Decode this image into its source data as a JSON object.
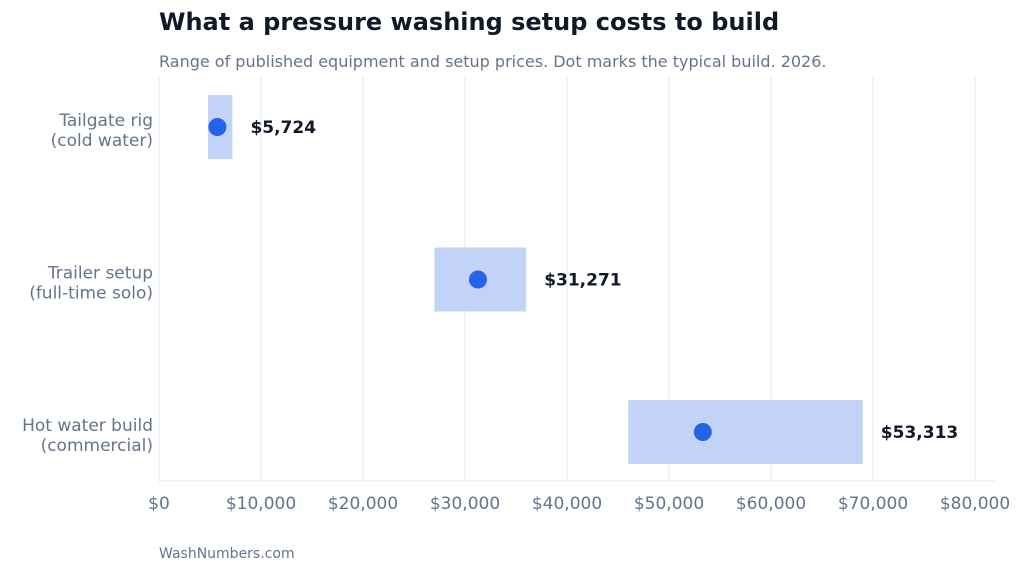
{
  "header": {
    "title": "What a pressure washing setup costs to build",
    "subtitle": "Range of published equipment and setup prices. Dot marks the typical build. 2026."
  },
  "footer": {
    "source": "WashNumbers.com"
  },
  "colors": {
    "range": "#c3d3f8",
    "dot": "#2563eb",
    "grid": "#e2e8f0",
    "axis_text": "#64748b",
    "value_text": "#111827"
  },
  "chart_data": {
    "type": "range-dot",
    "xlim": [
      0,
      80000
    ],
    "xticks": [
      0,
      10000,
      20000,
      30000,
      40000,
      50000,
      60000,
      70000,
      80000
    ],
    "xtick_labels": [
      "$0",
      "$10,000",
      "$20,000",
      "$30,000",
      "$40,000",
      "$50,000",
      "$60,000",
      "$70,000",
      "$80,000"
    ],
    "grid": true,
    "categories": [
      {
        "line1": "Tailgate rig",
        "line2": "(cold water)",
        "low": 4800,
        "high": 7200,
        "typical": 5724,
        "label": "$5,724"
      },
      {
        "line1": "Trailer setup",
        "line2": "(full-time solo)",
        "low": 27000,
        "high": 36000,
        "typical": 31271,
        "label": "$31,271"
      },
      {
        "line1": "Hot water build",
        "line2": "(commercial)",
        "low": 46000,
        "high": 69000,
        "typical": 53313,
        "label": "$53,313"
      }
    ]
  }
}
